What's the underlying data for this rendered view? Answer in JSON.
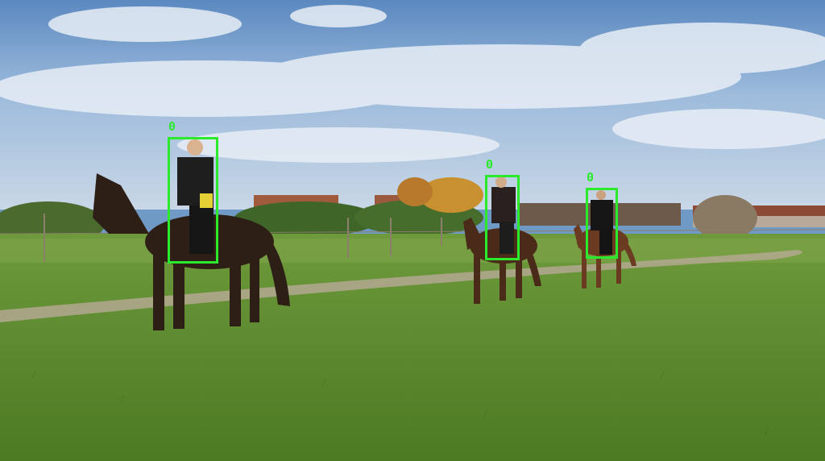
{
  "scene": {
    "description_icon": "photo-icon",
    "colors": {
      "detection_box": "#2bea2b",
      "sky": "#7ea6d1",
      "grass": "#5c8c2e"
    }
  },
  "detections": [
    {
      "label": "0"
    },
    {
      "label": "0"
    },
    {
      "label": "0"
    }
  ]
}
